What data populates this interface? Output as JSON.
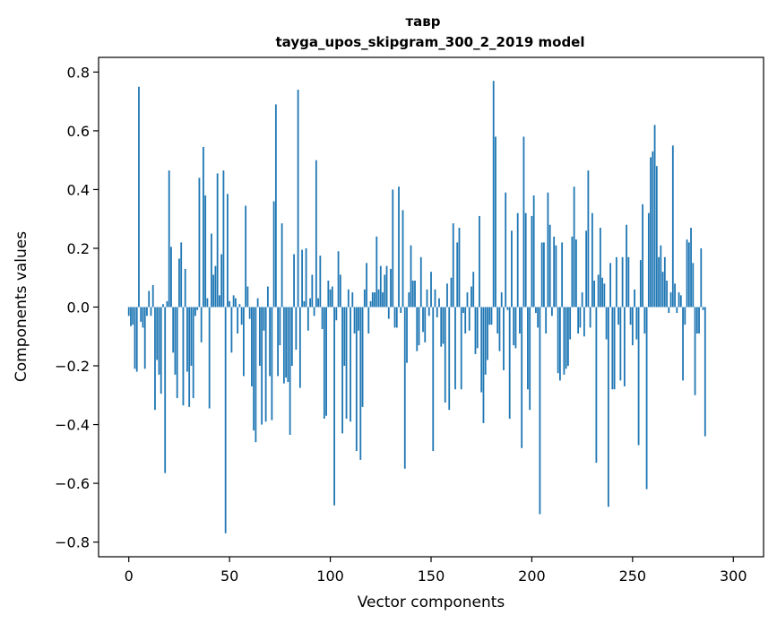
{
  "chart_data": {
    "type": "bar",
    "title": "тавр",
    "subtitle": "tayga_upos_skipgram_300_2_2019 model",
    "xlabel": "Vector components",
    "ylabel": "Components values",
    "xlim": [
      -15,
      315
    ],
    "ylim": [
      -0.85,
      0.85
    ],
    "xticks": [
      0,
      50,
      100,
      150,
      200,
      250,
      300
    ],
    "xtick_labels": [
      "0",
      "50",
      "100",
      "150",
      "200",
      "250",
      "300"
    ],
    "yticks": [
      0.8,
      0.6,
      0.4,
      0.2,
      0.0,
      -0.2,
      -0.4,
      -0.6,
      -0.8
    ],
    "ytick_labels": [
      "0.8",
      "0.6",
      "0.4",
      "0.2",
      "0.0",
      "−0.2",
      "−0.4",
      "−0.6",
      "−0.8"
    ],
    "grid": false,
    "color": "#1f77b4",
    "values": [
      -0.03,
      -0.065,
      -0.06,
      -0.21,
      -0.22,
      0.75,
      -0.05,
      -0.07,
      -0.21,
      -0.03,
      0.055,
      -0.03,
      0.075,
      -0.35,
      -0.18,
      -0.23,
      -0.295,
      0.01,
      -0.565,
      0.02,
      0.465,
      0.205,
      -0.155,
      -0.23,
      -0.31,
      0.165,
      0.22,
      -0.335,
      0.13,
      -0.22,
      -0.34,
      -0.2,
      -0.31,
      -0.03,
      -0.01,
      0.44,
      -0.12,
      0.545,
      0.38,
      0.03,
      -0.345,
      0.25,
      0.11,
      0.14,
      0.455,
      0.04,
      0.18,
      0.465,
      -0.77,
      0.385,
      0.02,
      -0.155,
      0.04,
      0.03,
      -0.09,
      0.01,
      -0.06,
      -0.235,
      0.345,
      0.07,
      -0.04,
      -0.27,
      -0.42,
      -0.46,
      0.03,
      -0.2,
      -0.4,
      -0.08,
      -0.39,
      0.07,
      -0.235,
      -0.385,
      0.36,
      0.69,
      -0.235,
      -0.13,
      0.285,
      -0.26,
      -0.24,
      -0.255,
      -0.435,
      -0.2,
      0.18,
      -0.145,
      0.74,
      -0.275,
      0.195,
      0.02,
      0.2,
      -0.08,
      0.03,
      0.11,
      -0.03,
      0.5,
      0.03,
      0.175,
      -0.075,
      -0.38,
      -0.37,
      0.09,
      0.06,
      0.07,
      -0.675,
      -0.045,
      0.19,
      0.11,
      -0.43,
      -0.2,
      -0.38,
      0.06,
      -0.39,
      0.05,
      -0.09,
      -0.49,
      -0.08,
      -0.52,
      -0.34,
      0.06,
      0.15,
      -0.09,
      0.02,
      0.05,
      0.05,
      0.24,
      0.06,
      0.14,
      0.05,
      0.11,
      0.14,
      -0.04,
      0.13,
      0.4,
      -0.07,
      -0.07,
      0.41,
      -0.02,
      0.33,
      -0.55,
      -0.19,
      0.05,
      0.21,
      0.09,
      0.09,
      -0.15,
      -0.13,
      0.17,
      -0.085,
      -0.12,
      0.06,
      -0.03,
      0.12,
      -0.49,
      0.06,
      -0.035,
      0.03,
      -0.135,
      -0.125,
      -0.325,
      0.08,
      -0.35,
      0.1,
      0.285,
      -0.28,
      0.22,
      0.27,
      -0.28,
      -0.02,
      -0.09,
      0.05,
      -0.08,
      0.07,
      0.12,
      -0.16,
      -0.14,
      0.31,
      -0.29,
      -0.395,
      -0.23,
      -0.18,
      -0.06,
      -0.06,
      0.77,
      0.58,
      -0.09,
      -0.15,
      0.05,
      -0.215,
      0.39,
      -0.01,
      -0.38,
      0.26,
      -0.13,
      -0.14,
      0.32,
      -0.09,
      -0.48,
      0.58,
      0.32,
      -0.28,
      -0.35,
      0.31,
      0.38,
      -0.02,
      -0.07,
      -0.705,
      0.22,
      0.22,
      -0.09,
      0.39,
      0.28,
      -0.03,
      0.24,
      0.21,
      -0.225,
      -0.25,
      0.22,
      -0.23,
      -0.21,
      -0.2,
      -0.11,
      0.24,
      0.41,
      0.23,
      -0.09,
      -0.07,
      0.05,
      -0.1,
      0.26,
      0.465,
      -0.07,
      0.32,
      0.09,
      -0.53,
      0.11,
      0.27,
      0.1,
      0.08,
      -0.11,
      -0.68,
      0.15,
      -0.28,
      -0.28,
      0.17,
      -0.06,
      -0.25,
      0.17,
      -0.27,
      0.28,
      0.17,
      -0.06,
      -0.13,
      0.06,
      -0.11,
      -0.47,
      0.16,
      0.35,
      -0.09,
      -0.62,
      0.32,
      0.51,
      0.53,
      0.62,
      0.48,
      0.17,
      0.21,
      0.12,
      0.17,
      0.09,
      -0.02,
      0.05,
      0.55,
      0.08,
      -0.02,
      0.05,
      0.04,
      -0.25,
      -0.06,
      0.23,
      0.22,
      0.27,
      0.15,
      -0.3,
      -0.09,
      -0.09,
      0.2,
      -0.01,
      -0.44
    ]
  }
}
